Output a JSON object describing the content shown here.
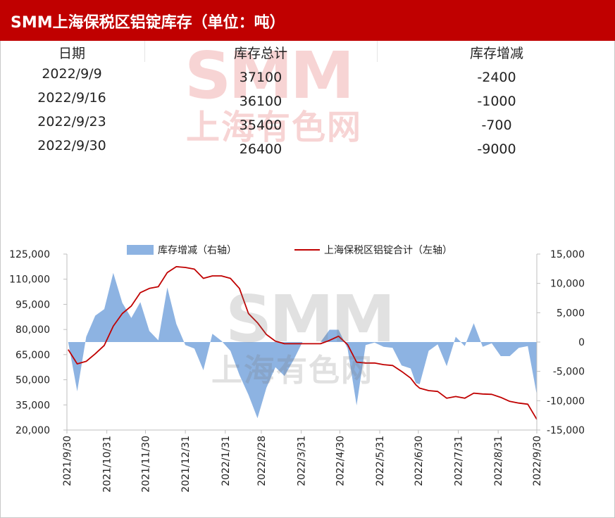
{
  "title": "SMM上海保税区铝锭库存（单位：吨）",
  "watermark": {
    "latin": "SMM",
    "chinese": "上海有色网"
  },
  "table": {
    "headers": [
      "日期",
      "库存总计",
      "库存增减"
    ],
    "rows": [
      {
        "date": "2022/9/9",
        "total": "37100",
        "change": "-2400"
      },
      {
        "date": "2022/9/16",
        "total": "36100",
        "change": "-1000"
      },
      {
        "date": "2022/9/23",
        "total": "35400",
        "change": "-700"
      },
      {
        "date": "2022/9/30",
        "total": "26400",
        "change": "-9000"
      }
    ]
  },
  "colors": {
    "title_bar": "#c00000",
    "area": "#8db3e2",
    "line": "#c00000"
  },
  "chart_data": {
    "type": "area+line",
    "legend": [
      "库存增减（右轴）",
      "上海保税区铝锭合计（左轴）"
    ],
    "legend_placement": "top",
    "grid": false,
    "x_range": [
      "2021/9/30",
      "2022/9/30"
    ],
    "x_ticks": [
      "2021/9/30",
      "2021/10/31",
      "2021/11/30",
      "2021/12/31",
      "2022/1/31",
      "2022/2/28",
      "2022/3/31",
      "2022/4/30",
      "2022/5/31",
      "2022/6/30",
      "2022/7/31",
      "2022/8/31",
      "2022/9/30"
    ],
    "y_left": {
      "min": 20000,
      "max": 125000,
      "ticks": [
        "20,000",
        "35,000",
        "50,000",
        "65,000",
        "80,000",
        "95,000",
        "110,000",
        "125,000"
      ]
    },
    "y_right": {
      "min": -15000,
      "max": 15000,
      "ticks": [
        "-15,000",
        "-10,000",
        "-5,000",
        "0",
        "5,000",
        "10,000",
        "15,000"
      ]
    },
    "series": [
      {
        "name": "库存增减（右轴）",
        "axis": "right",
        "kind": "area",
        "points": [
          [
            "2021-10-01",
            0
          ],
          [
            "2021-10-08",
            -8400
          ],
          [
            "2021-10-15",
            900
          ],
          [
            "2021-10-22",
            4500
          ],
          [
            "2021-10-29",
            5600
          ],
          [
            "2021-11-05",
            11800
          ],
          [
            "2021-11-12",
            6700
          ],
          [
            "2021-11-19",
            4100
          ],
          [
            "2021-11-26",
            6800
          ],
          [
            "2021-12-03",
            1900
          ],
          [
            "2021-12-10",
            300
          ],
          [
            "2021-12-17",
            9300
          ],
          [
            "2021-12-24",
            3100
          ],
          [
            "2021-12-31",
            -500
          ],
          [
            "2022-01-07",
            -1100
          ],
          [
            "2022-01-14",
            -4800
          ],
          [
            "2022-01-21",
            1400
          ],
          [
            "2022-01-28",
            200
          ],
          [
            "2022-02-04",
            -1500
          ],
          [
            "2022-02-11",
            -5600
          ],
          [
            "2022-02-18",
            -9000
          ],
          [
            "2022-02-25",
            -13000
          ],
          [
            "2022-03-04",
            -7800
          ],
          [
            "2022-03-11",
            -4300
          ],
          [
            "2022-03-18",
            -5800
          ],
          [
            "2022-03-25",
            -3100
          ],
          [
            "2022-04-01",
            0
          ],
          [
            "2022-04-08",
            0
          ],
          [
            "2022-04-15",
            0
          ],
          [
            "2022-04-22",
            2100
          ],
          [
            "2022-04-29",
            2100
          ],
          [
            "2022-05-06",
            -1100
          ],
          [
            "2022-05-13",
            -10800
          ],
          [
            "2022-05-20",
            -500
          ],
          [
            "2022-05-27",
            -100
          ],
          [
            "2022-06-03",
            -800
          ],
          [
            "2022-06-10",
            -1000
          ],
          [
            "2022-06-17",
            -4000
          ],
          [
            "2022-06-24",
            -4500
          ],
          [
            "2022-06-28",
            -7000
          ],
          [
            "2022-07-01",
            -7200
          ],
          [
            "2022-07-08",
            -1500
          ],
          [
            "2022-07-15",
            -400
          ],
          [
            "2022-07-22",
            -4100
          ],
          [
            "2022-07-29",
            900
          ],
          [
            "2022-08-05",
            -700
          ],
          [
            "2022-08-12",
            3200
          ],
          [
            "2022-08-19",
            -800
          ],
          [
            "2022-08-26",
            -200
          ],
          [
            "2022-09-02",
            -2400
          ],
          [
            "2022-09-09",
            -2400
          ],
          [
            "2022-09-16",
            -1000
          ],
          [
            "2022-09-23",
            -700
          ],
          [
            "2022-09-30",
            -9000
          ]
        ]
      },
      {
        "name": "上海保税区铝锭合计（左轴）",
        "axis": "left",
        "kind": "line",
        "points": [
          [
            "2021-10-01",
            68000
          ],
          [
            "2021-10-08",
            59500
          ],
          [
            "2021-10-15",
            61000
          ],
          [
            "2021-10-22",
            65500
          ],
          [
            "2021-10-29",
            70500
          ],
          [
            "2021-11-05",
            82000
          ],
          [
            "2021-11-12",
            89500
          ],
          [
            "2021-11-19",
            94000
          ],
          [
            "2021-11-26",
            102000
          ],
          [
            "2021-12-03",
            104500
          ],
          [
            "2021-12-10",
            105500
          ],
          [
            "2021-12-17",
            114000
          ],
          [
            "2021-12-24",
            117500
          ],
          [
            "2021-12-31",
            117000
          ],
          [
            "2022-01-07",
            116000
          ],
          [
            "2022-01-14",
            110500
          ],
          [
            "2022-01-21",
            112000
          ],
          [
            "2022-01-28",
            112000
          ],
          [
            "2022-02-04",
            110500
          ],
          [
            "2022-02-11",
            104500
          ],
          [
            "2022-02-18",
            89500
          ],
          [
            "2022-02-25",
            84000
          ],
          [
            "2022-03-04",
            77000
          ],
          [
            "2022-03-11",
            73000
          ],
          [
            "2022-03-18",
            71500
          ],
          [
            "2022-03-25",
            71500
          ],
          [
            "2022-04-01",
            71500
          ],
          [
            "2022-04-08",
            71500
          ],
          [
            "2022-04-15",
            71500
          ],
          [
            "2022-04-22",
            73500
          ],
          [
            "2022-04-29",
            76000
          ],
          [
            "2022-05-06",
            71000
          ],
          [
            "2022-05-13",
            60500
          ],
          [
            "2022-05-20",
            60000
          ],
          [
            "2022-05-27",
            60000
          ],
          [
            "2022-06-03",
            59000
          ],
          [
            "2022-06-10",
            58500
          ],
          [
            "2022-06-17",
            55000
          ],
          [
            "2022-06-24",
            51000
          ],
          [
            "2022-06-28",
            47000
          ],
          [
            "2022-07-01",
            45000
          ],
          [
            "2022-07-08",
            43500
          ],
          [
            "2022-07-15",
            43000
          ],
          [
            "2022-07-22",
            39000
          ],
          [
            "2022-07-29",
            40000
          ],
          [
            "2022-08-05",
            39000
          ],
          [
            "2022-08-12",
            42000
          ],
          [
            "2022-08-19",
            41500
          ],
          [
            "2022-08-26",
            41300
          ],
          [
            "2022-09-02",
            39500
          ],
          [
            "2022-09-09",
            37100
          ],
          [
            "2022-09-16",
            36100
          ],
          [
            "2022-09-23",
            35400
          ],
          [
            "2022-09-30",
            26400
          ]
        ]
      }
    ]
  }
}
